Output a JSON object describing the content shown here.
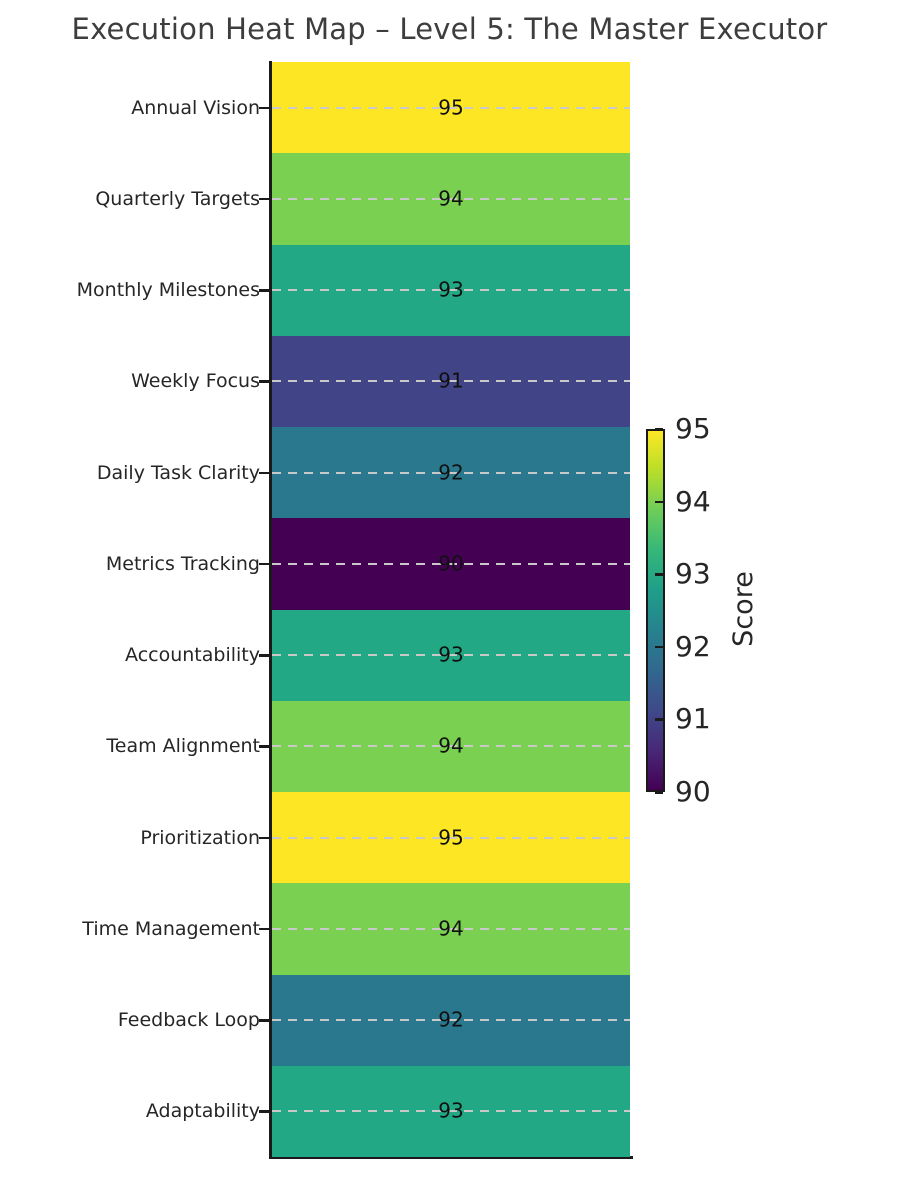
{
  "chart_data": {
    "type": "heatmap",
    "title": "Execution Heat Map – Level 5: The Master Executor",
    "categories": [
      "Annual Vision",
      "Quarterly Targets",
      "Monthly Milestones",
      "Weekly Focus",
      "Daily Task Clarity",
      "Metrics Tracking",
      "Accountability",
      "Team Alignment",
      "Prioritization",
      "Time Management",
      "Feedback Loop",
      "Adaptability"
    ],
    "values": [
      95,
      94,
      93,
      91,
      92,
      90,
      93,
      94,
      95,
      94,
      92,
      93
    ],
    "xlabel": "",
    "ylabel": "",
    "value_range": [
      90,
      95
    ],
    "colormap": "viridis",
    "value_colors": {
      "90": "#440154",
      "91": "#414487",
      "92": "#2a788e",
      "93": "#22a884",
      "94": "#7ad151",
      "95": "#fde725"
    },
    "colorbar": {
      "label": "Score",
      "ticks": [
        95,
        94,
        93,
        92,
        91,
        90
      ],
      "position": "right",
      "gradient_stops_bottom_to_top": [
        "#440154",
        "#482878",
        "#3e4a89",
        "#31688e",
        "#26828e",
        "#1f9e89",
        "#35b779",
        "#6dcd59",
        "#b8de29",
        "#fde725"
      ]
    },
    "grid": "horizontal dashed gridlines at each row center",
    "annotations": "score value rendered at center of each cell",
    "layout": {
      "single_column": true,
      "spines": [
        "left",
        "bottom"
      ],
      "legend_position": "right-colorbar"
    }
  },
  "styles": {
    "title_color": "#3d3d3d",
    "text_color": "#262626",
    "value_text_color": "#111111",
    "gridline_color": "#c9c9c9",
    "spine_color": "#1a1a1a",
    "background": "#ffffff"
  }
}
